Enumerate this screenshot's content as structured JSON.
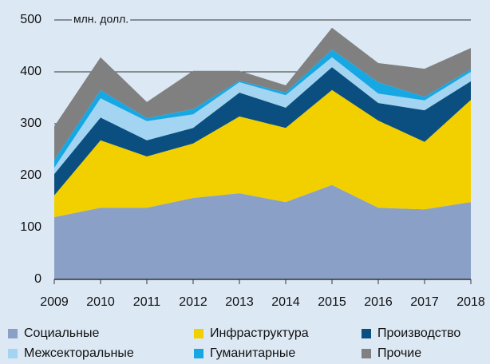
{
  "chart_data": {
    "type": "stacked_area",
    "y_label": "млн. долл.",
    "categories": [
      "2009",
      "2010",
      "2011",
      "2012",
      "2013",
      "2014",
      "2015",
      "2016",
      "2017",
      "2018"
    ],
    "series": [
      {
        "name": "Социальные",
        "color": "#8aa0c6",
        "values": [
          120,
          138,
          138,
          157,
          166,
          149,
          182,
          138,
          135,
          149
        ]
      },
      {
        "name": "Инфраструктура",
        "color": "#f2d000",
        "values": [
          42,
          130,
          99,
          105,
          148,
          143,
          183,
          168,
          130,
          197
        ]
      },
      {
        "name": "Производство",
        "color": "#0b4f80",
        "values": [
          41,
          44,
          31,
          30,
          46,
          39,
          44,
          34,
          61,
          36
        ]
      },
      {
        "name": "Межсекторальные",
        "color": "#a3d5f2",
        "values": [
          12,
          37,
          37,
          26,
          20,
          24,
          19,
          18,
          19,
          18
        ]
      },
      {
        "name": "Гуманитарные",
        "color": "#17a8e3",
        "values": [
          16,
          16,
          6,
          10,
          3,
          5,
          15,
          22,
          7,
          5
        ]
      },
      {
        "name": "Прочие",
        "color": "#808080",
        "values": [
          64,
          63,
          31,
          74,
          19,
          14,
          42,
          37,
          54,
          41
        ]
      }
    ],
    "ylim": [
      0,
      500
    ],
    "yticks": [
      0,
      100,
      200,
      300,
      400,
      500
    ],
    "grid": true
  }
}
